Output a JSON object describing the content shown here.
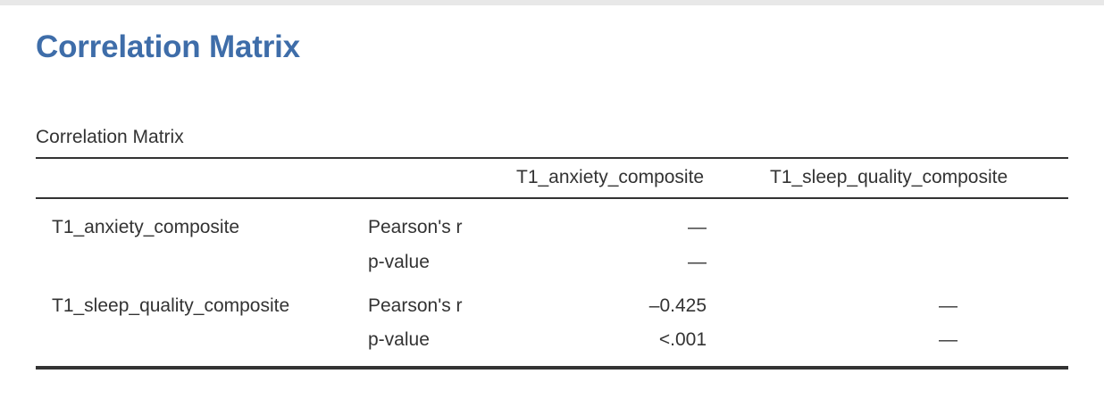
{
  "header": {
    "title": "Correlation Matrix"
  },
  "table": {
    "caption": "Correlation Matrix",
    "columns": [
      "T1_anxiety_composite",
      "T1_sleep_quality_composite"
    ],
    "rows": [
      {
        "variable": "T1_anxiety_composite",
        "stats": [
          {
            "label": "Pearson's r",
            "values": [
              "—",
              ""
            ]
          },
          {
            "label": "p-value",
            "values": [
              "—",
              ""
            ]
          }
        ]
      },
      {
        "variable": "T1_sleep_quality_composite",
        "stats": [
          {
            "label": "Pearson's r",
            "values": [
              "–0.425",
              "—"
            ]
          },
          {
            "label": "p-value",
            "values": [
              "<.001",
              "—"
            ]
          }
        ]
      }
    ]
  }
}
